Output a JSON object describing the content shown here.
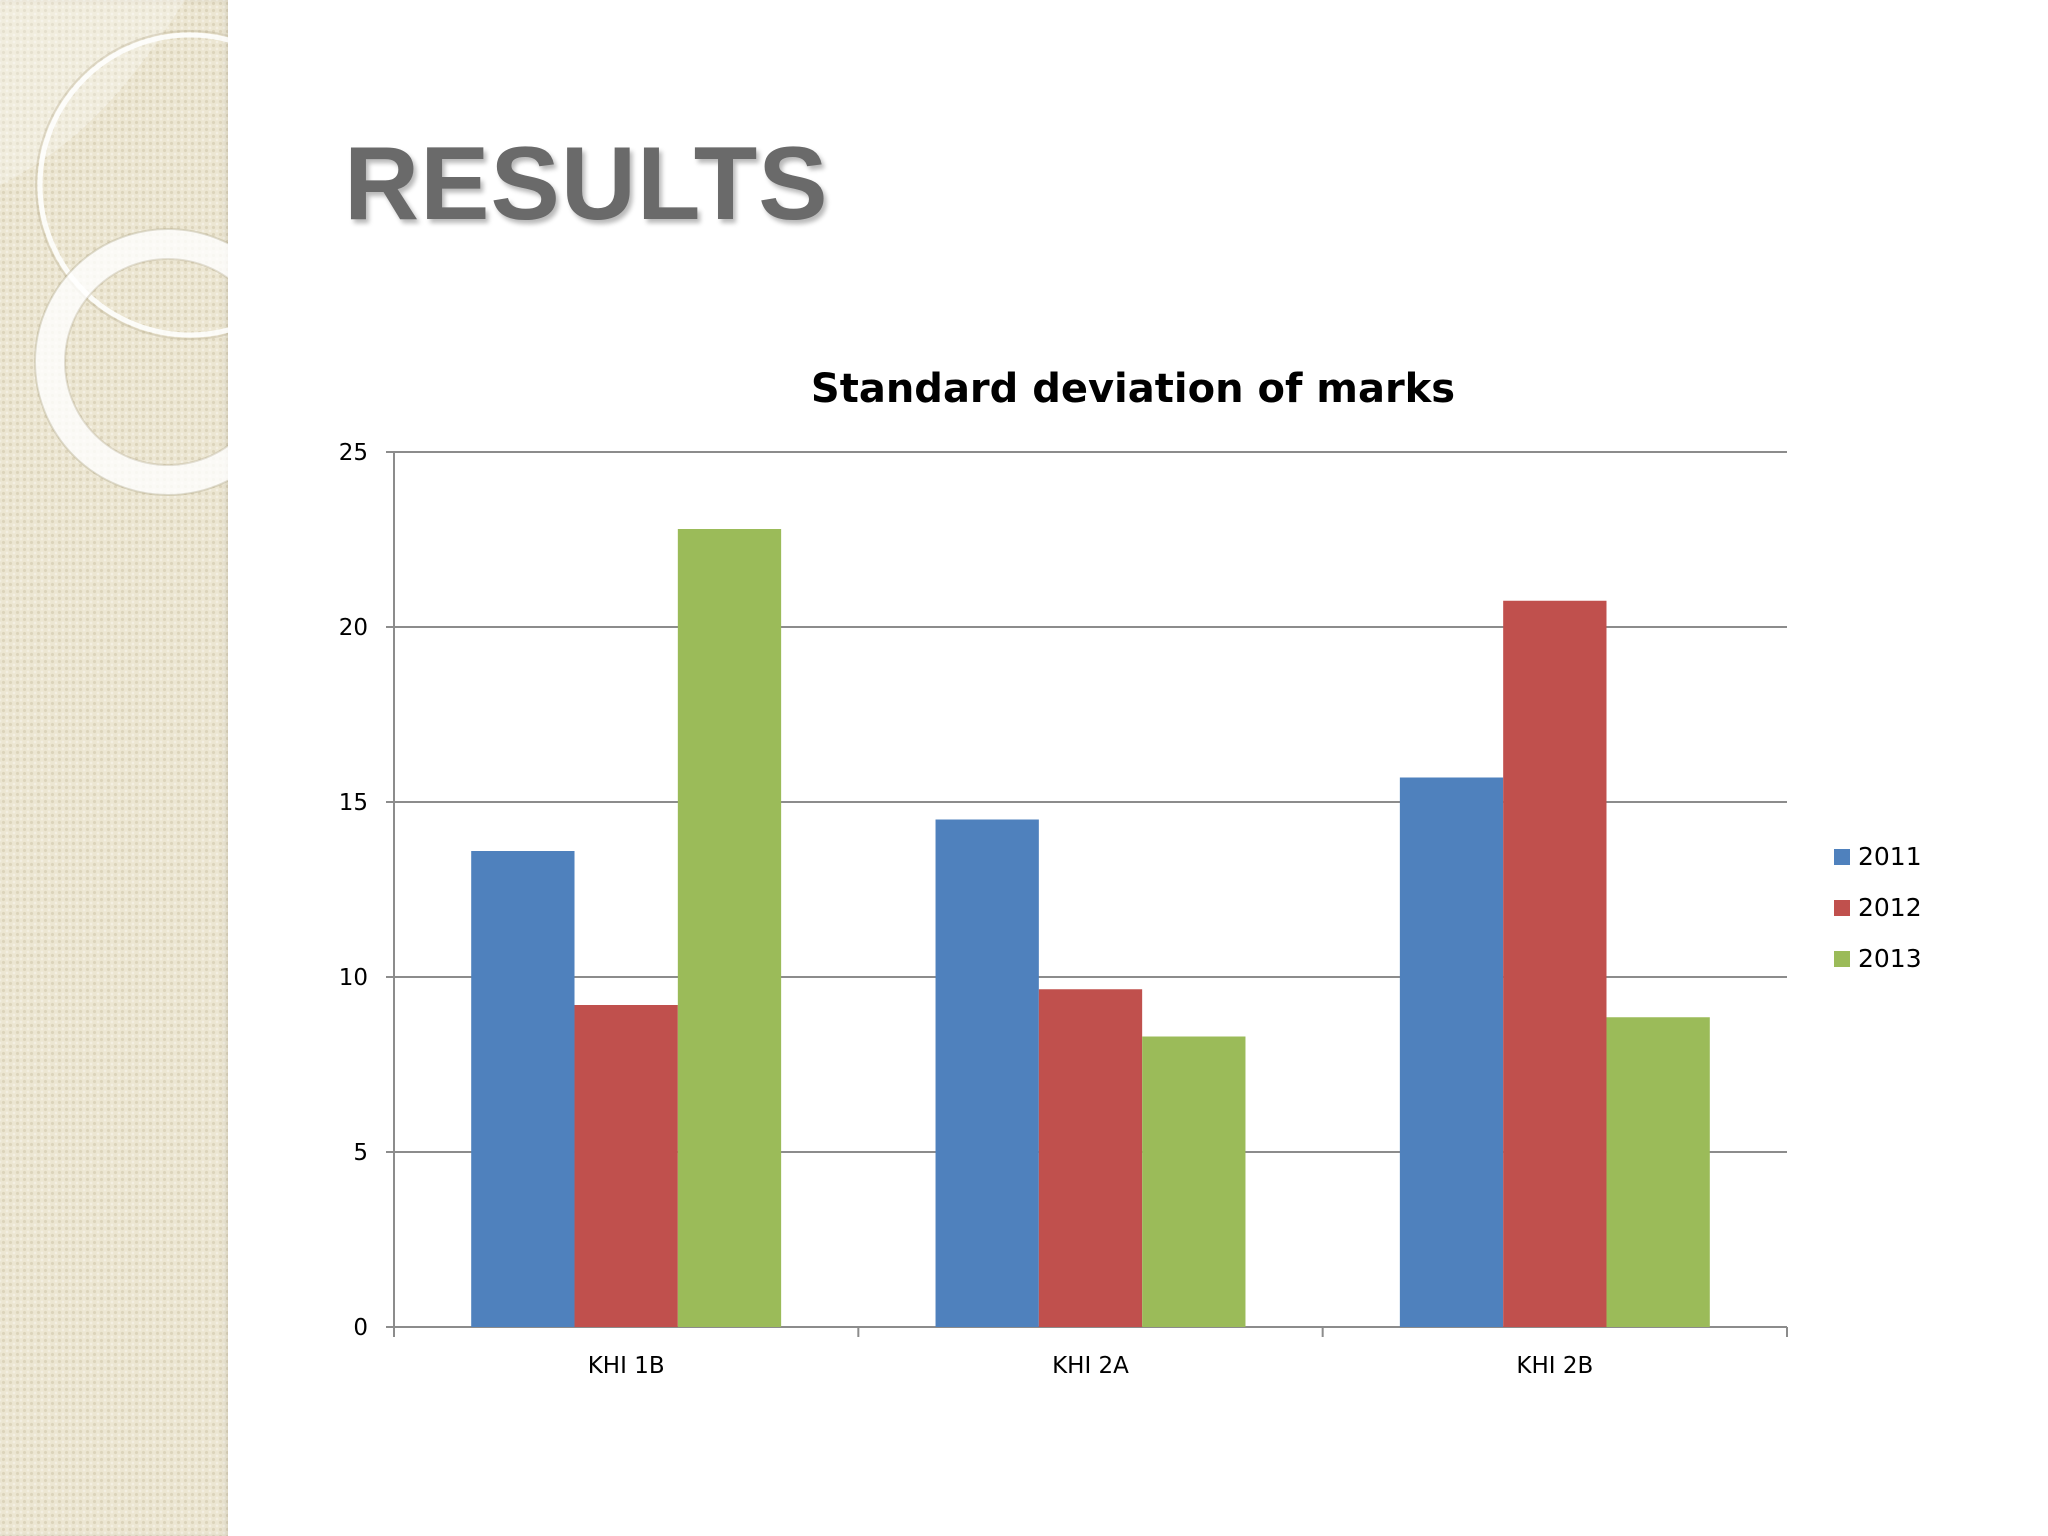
{
  "slide": {
    "title": "RESULTS"
  },
  "chart_data": {
    "type": "bar",
    "title": "Standard deviation of marks",
    "xlabel": "",
    "ylabel": "",
    "categories": [
      "KHI 1B",
      "KHI 2A",
      "KHI 2B"
    ],
    "series": [
      {
        "name": "2011",
        "color": "#4f81bd",
        "values": [
          13.6,
          14.5,
          15.7
        ]
      },
      {
        "name": "2012",
        "color": "#c0504d",
        "values": [
          9.2,
          9.65,
          20.75
        ]
      },
      {
        "name": "2013",
        "color": "#9bbb59",
        "values": [
          22.8,
          8.3,
          8.85
        ]
      }
    ],
    "ylim": [
      0,
      25
    ],
    "yticks": [
      0,
      5,
      10,
      15,
      20,
      25
    ],
    "grid": true,
    "legend_position": "right"
  }
}
